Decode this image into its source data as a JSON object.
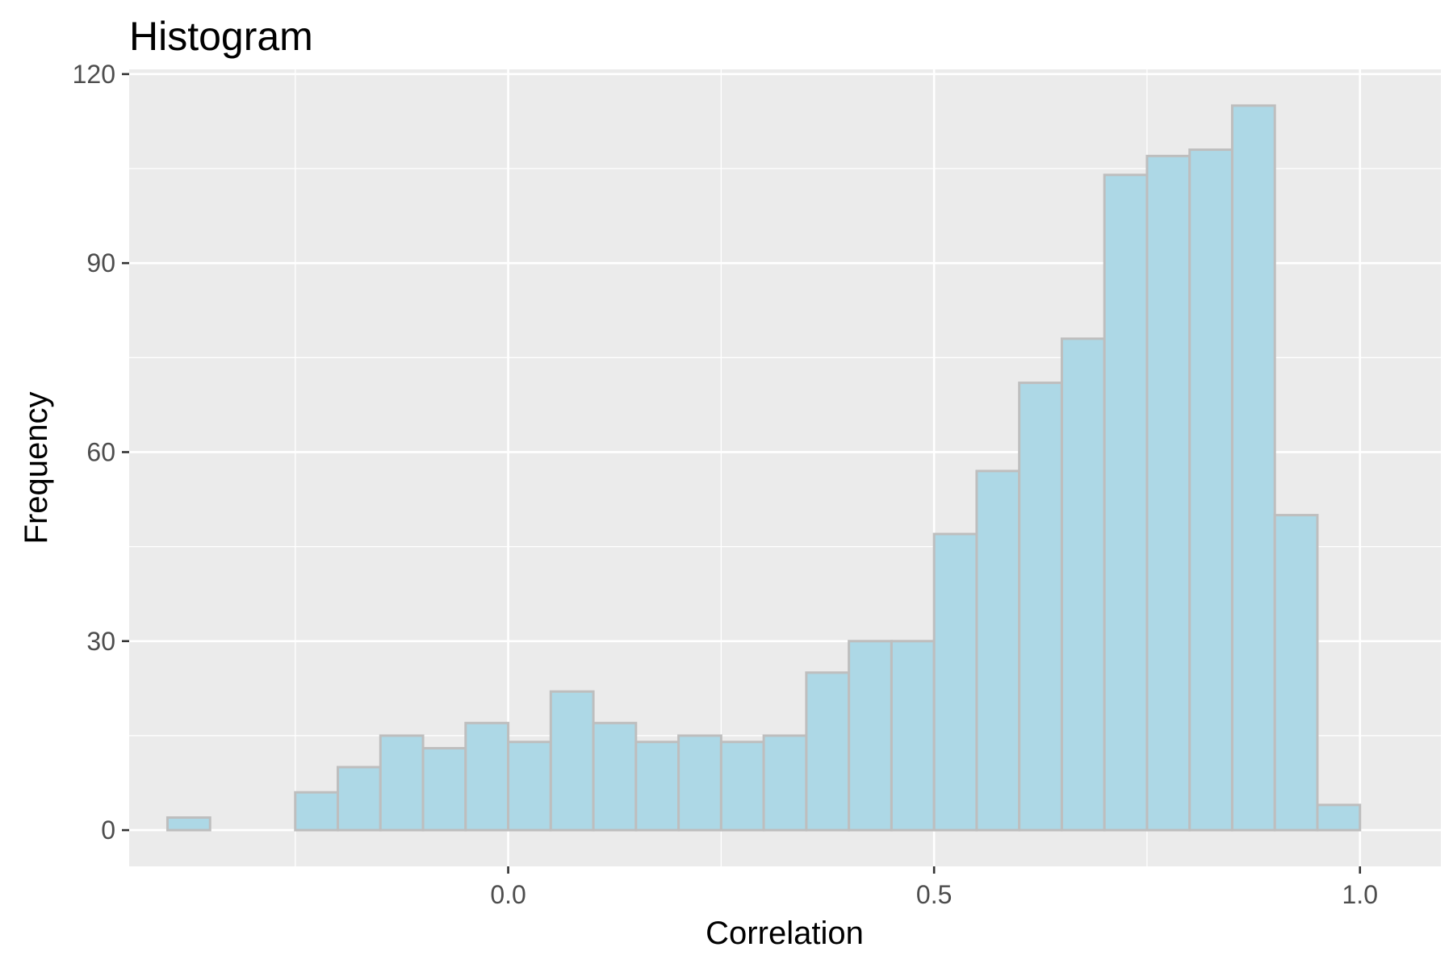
{
  "chart_data": {
    "type": "bar",
    "subtype": "histogram",
    "title": "Histogram",
    "xlabel": "Correlation",
    "ylabel": "Frequency",
    "bin_width": 0.05,
    "bins": [
      {
        "x0": -0.4,
        "x1": -0.35,
        "count": 2
      },
      {
        "x0": -0.35,
        "x1": -0.3,
        "count": 0
      },
      {
        "x0": -0.3,
        "x1": -0.25,
        "count": 0
      },
      {
        "x0": -0.25,
        "x1": -0.2,
        "count": 6
      },
      {
        "x0": -0.2,
        "x1": -0.15,
        "count": 10
      },
      {
        "x0": -0.15,
        "x1": -0.1,
        "count": 15
      },
      {
        "x0": -0.1,
        "x1": -0.05,
        "count": 13
      },
      {
        "x0": -0.05,
        "x1": 0.0,
        "count": 17
      },
      {
        "x0": 0.0,
        "x1": 0.05,
        "count": 14
      },
      {
        "x0": 0.05,
        "x1": 0.1,
        "count": 22
      },
      {
        "x0": 0.1,
        "x1": 0.15,
        "count": 17
      },
      {
        "x0": 0.15,
        "x1": 0.2,
        "count": 14
      },
      {
        "x0": 0.2,
        "x1": 0.25,
        "count": 15
      },
      {
        "x0": 0.25,
        "x1": 0.3,
        "count": 14
      },
      {
        "x0": 0.3,
        "x1": 0.35,
        "count": 15
      },
      {
        "x0": 0.35,
        "x1": 0.4,
        "count": 25
      },
      {
        "x0": 0.4,
        "x1": 0.45,
        "count": 30
      },
      {
        "x0": 0.45,
        "x1": 0.5,
        "count": 30
      },
      {
        "x0": 0.5,
        "x1": 0.55,
        "count": 47
      },
      {
        "x0": 0.55,
        "x1": 0.6,
        "count": 57
      },
      {
        "x0": 0.6,
        "x1": 0.65,
        "count": 71
      },
      {
        "x0": 0.65,
        "x1": 0.7,
        "count": 78
      },
      {
        "x0": 0.7,
        "x1": 0.75,
        "count": 104
      },
      {
        "x0": 0.75,
        "x1": 0.8,
        "count": 107
      },
      {
        "x0": 0.8,
        "x1": 0.85,
        "count": 108
      },
      {
        "x0": 0.85,
        "x1": 0.9,
        "count": 115
      },
      {
        "x0": 0.9,
        "x1": 0.95,
        "count": 50
      },
      {
        "x0": 0.95,
        "x1": 1.0,
        "count": 4
      }
    ],
    "xlim": [
      -0.445,
      1.095
    ],
    "ylim": [
      -5.75,
      120.75
    ],
    "x_ticks": [
      0.0,
      0.5,
      1.0
    ],
    "x_tick_labels": [
      "0.0",
      "0.5",
      "1.0"
    ],
    "x_minor_ticks": [
      -0.25,
      0.25,
      0.75
    ],
    "y_ticks": [
      0,
      30,
      60,
      90,
      120
    ],
    "y_tick_labels": [
      "0",
      "30",
      "60",
      "90",
      "120"
    ],
    "y_minor_ticks": [
      15,
      45,
      75,
      105
    ],
    "grid": true,
    "legend": "none",
    "colors": {
      "panel_background": "#ebebeb",
      "grid": "#ffffff",
      "bar_fill": "#add8e6",
      "bar_outline": "#bebebe",
      "tick_mark": "#333333",
      "tick_label": "#4d4d4d"
    }
  }
}
